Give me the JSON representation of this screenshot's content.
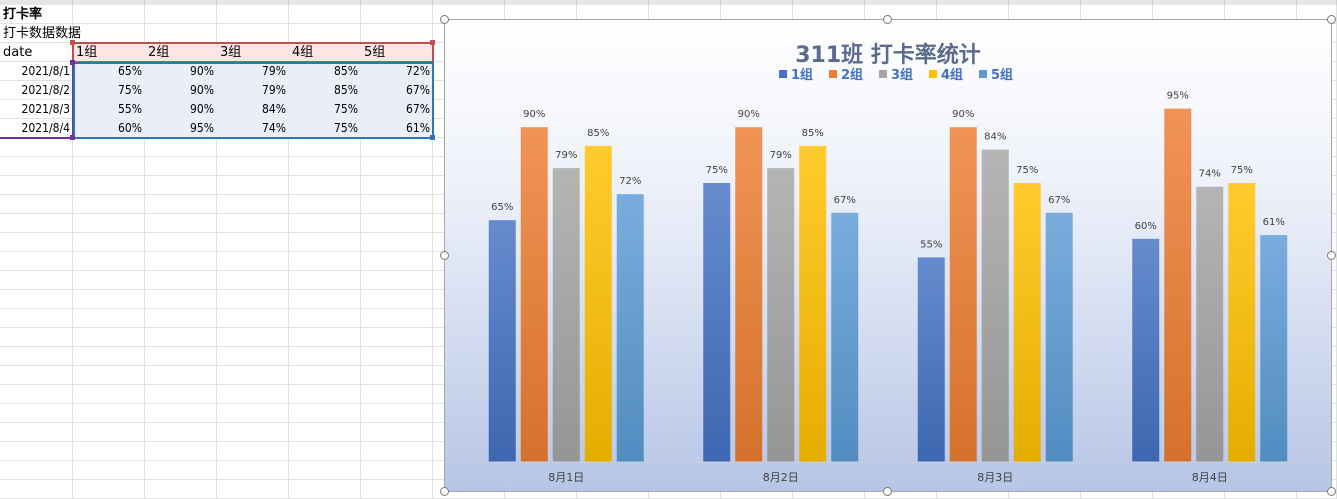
{
  "sheet": {
    "title_cell": "打卡率",
    "subtitle_cell": "打卡数据数据",
    "header": [
      "date",
      "1组",
      "2组",
      "3组",
      "4组",
      "5组"
    ],
    "rows": [
      [
        "2021/8/1",
        "65%",
        "90%",
        "79%",
        "85%",
        "72%"
      ],
      [
        "2021/8/2",
        "75%",
        "90%",
        "79%",
        "85%",
        "67%"
      ],
      [
        "2021/8/3",
        "55%",
        "90%",
        "84%",
        "75%",
        "67%"
      ],
      [
        "2021/8/4",
        "60%",
        "95%",
        "74%",
        "75%",
        "61%"
      ]
    ]
  },
  "chart_data": {
    "type": "bar",
    "title": "311班 打卡率统计",
    "categories": [
      "8月1日",
      "8月2日",
      "8月3日",
      "8月4日"
    ],
    "series": [
      {
        "name": "1组",
        "values": [
          65,
          75,
          55,
          60
        ],
        "color": "#4472c4",
        "labels": [
          "65%",
          "75%",
          "55%",
          "60%"
        ]
      },
      {
        "name": "2组",
        "values": [
          90,
          90,
          90,
          95
        ],
        "color": "#ed7d31",
        "labels": [
          "90%",
          "90%",
          "90%",
          "95%"
        ]
      },
      {
        "name": "3组",
        "values": [
          79,
          79,
          84,
          74
        ],
        "color": "#a5a5a5",
        "labels": [
          "79%",
          "79%",
          "84%",
          "74%"
        ]
      },
      {
        "name": "4组",
        "values": [
          85,
          85,
          75,
          75
        ],
        "color": "#ffc000",
        "labels": [
          "85%",
          "85%",
          "75%",
          "75%"
        ]
      },
      {
        "name": "5组",
        "values": [
          72,
          67,
          67,
          61
        ],
        "color": "#5b9bd5",
        "labels": [
          "72%",
          "67%",
          "67%",
          "61%"
        ]
      }
    ],
    "ylim": [
      0,
      100
    ],
    "legend": "top",
    "grid": false
  },
  "colors": {
    "header_border": "#c0504d",
    "label_border": "#7030a0",
    "data_border": "#2e75b6",
    "legend_text": "#4472c4"
  }
}
